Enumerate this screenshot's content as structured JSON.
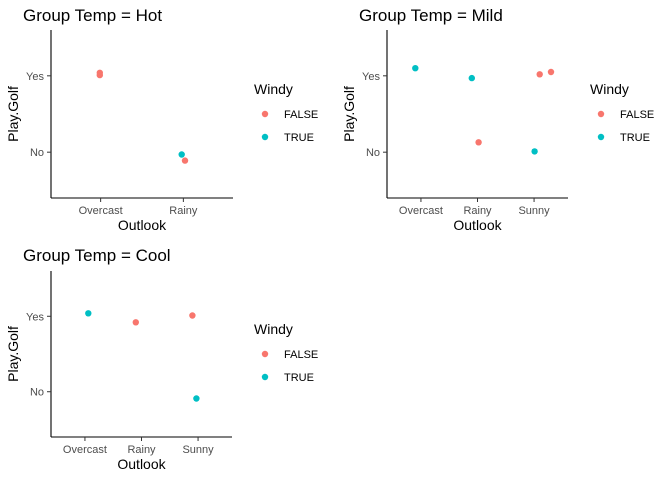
{
  "colors": {
    "FALSE": "#F8766D",
    "TRUE": "#00BFC4"
  },
  "chart_data": [
    {
      "type": "scatter",
      "title": "Group Temp  = Hot",
      "xlabel": "Outlook",
      "ylabel": "Play.Golf",
      "categories": [
        "Overcast",
        "Rainy"
      ],
      "y_categories": [
        "No",
        "Yes"
      ],
      "legend": {
        "title": "Windy",
        "entries": [
          "FALSE",
          "TRUE"
        ],
        "placement": "right"
      },
      "points": [
        {
          "x": "Overcast",
          "y": "Yes",
          "windy": "FALSE",
          "x_jitter": -0.01,
          "y_jitter": 0.04
        },
        {
          "x": "Overcast",
          "y": "Yes",
          "windy": "FALSE",
          "x_jitter": -0.01,
          "y_jitter": 0.01
        },
        {
          "x": "Rainy",
          "y": "No",
          "windy": "TRUE",
          "x_jitter": -0.02,
          "y_jitter": -0.03
        },
        {
          "x": "Rainy",
          "y": "No",
          "windy": "FALSE",
          "x_jitter": 0.02,
          "y_jitter": -0.11
        }
      ]
    },
    {
      "type": "scatter",
      "title": "Group Temp  = Mild",
      "xlabel": "Outlook",
      "ylabel": "Play.Golf",
      "categories": [
        "Overcast",
        "Rainy",
        "Sunny"
      ],
      "y_categories": [
        "No",
        "Yes"
      ],
      "legend": {
        "title": "Windy",
        "entries": [
          "FALSE",
          "TRUE"
        ],
        "placement": "right"
      },
      "points": [
        {
          "x": "Overcast",
          "y": "Yes",
          "windy": "TRUE",
          "x_jitter": -0.1,
          "y_jitter": 0.1
        },
        {
          "x": "Rainy",
          "y": "Yes",
          "windy": "TRUE",
          "x_jitter": -0.1,
          "y_jitter": -0.03
        },
        {
          "x": "Rainy",
          "y": "No",
          "windy": "FALSE",
          "x_jitter": 0.02,
          "y_jitter": 0.13
        },
        {
          "x": "Sunny",
          "y": "Yes",
          "windy": "FALSE",
          "x_jitter": 0.1,
          "y_jitter": 0.02
        },
        {
          "x": "Sunny",
          "y": "Yes",
          "windy": "FALSE",
          "x_jitter": 0.3,
          "y_jitter": 0.05
        },
        {
          "x": "Sunny",
          "y": "No",
          "windy": "TRUE",
          "x_jitter": 0.01,
          "y_jitter": 0.01
        }
      ]
    },
    {
      "type": "scatter",
      "title": "Group Temp  = Cool",
      "xlabel": "Outlook",
      "ylabel": "Play.Golf",
      "categories": [
        "Overcast",
        "Rainy",
        "Sunny"
      ],
      "y_categories": [
        "No",
        "Yes"
      ],
      "legend": {
        "title": "Windy",
        "entries": [
          "FALSE",
          "TRUE"
        ],
        "placement": "right"
      },
      "points": [
        {
          "x": "Overcast",
          "y": "Yes",
          "windy": "TRUE",
          "x_jitter": 0.06,
          "y_jitter": 0.04
        },
        {
          "x": "Rainy",
          "y": "Yes",
          "windy": "FALSE",
          "x_jitter": -0.1,
          "y_jitter": -0.08
        },
        {
          "x": "Sunny",
          "y": "Yes",
          "windy": "FALSE",
          "x_jitter": -0.1,
          "y_jitter": 0.01
        },
        {
          "x": "Sunny",
          "y": "No",
          "windy": "TRUE",
          "x_jitter": -0.03,
          "y_jitter": -0.09
        }
      ]
    }
  ]
}
